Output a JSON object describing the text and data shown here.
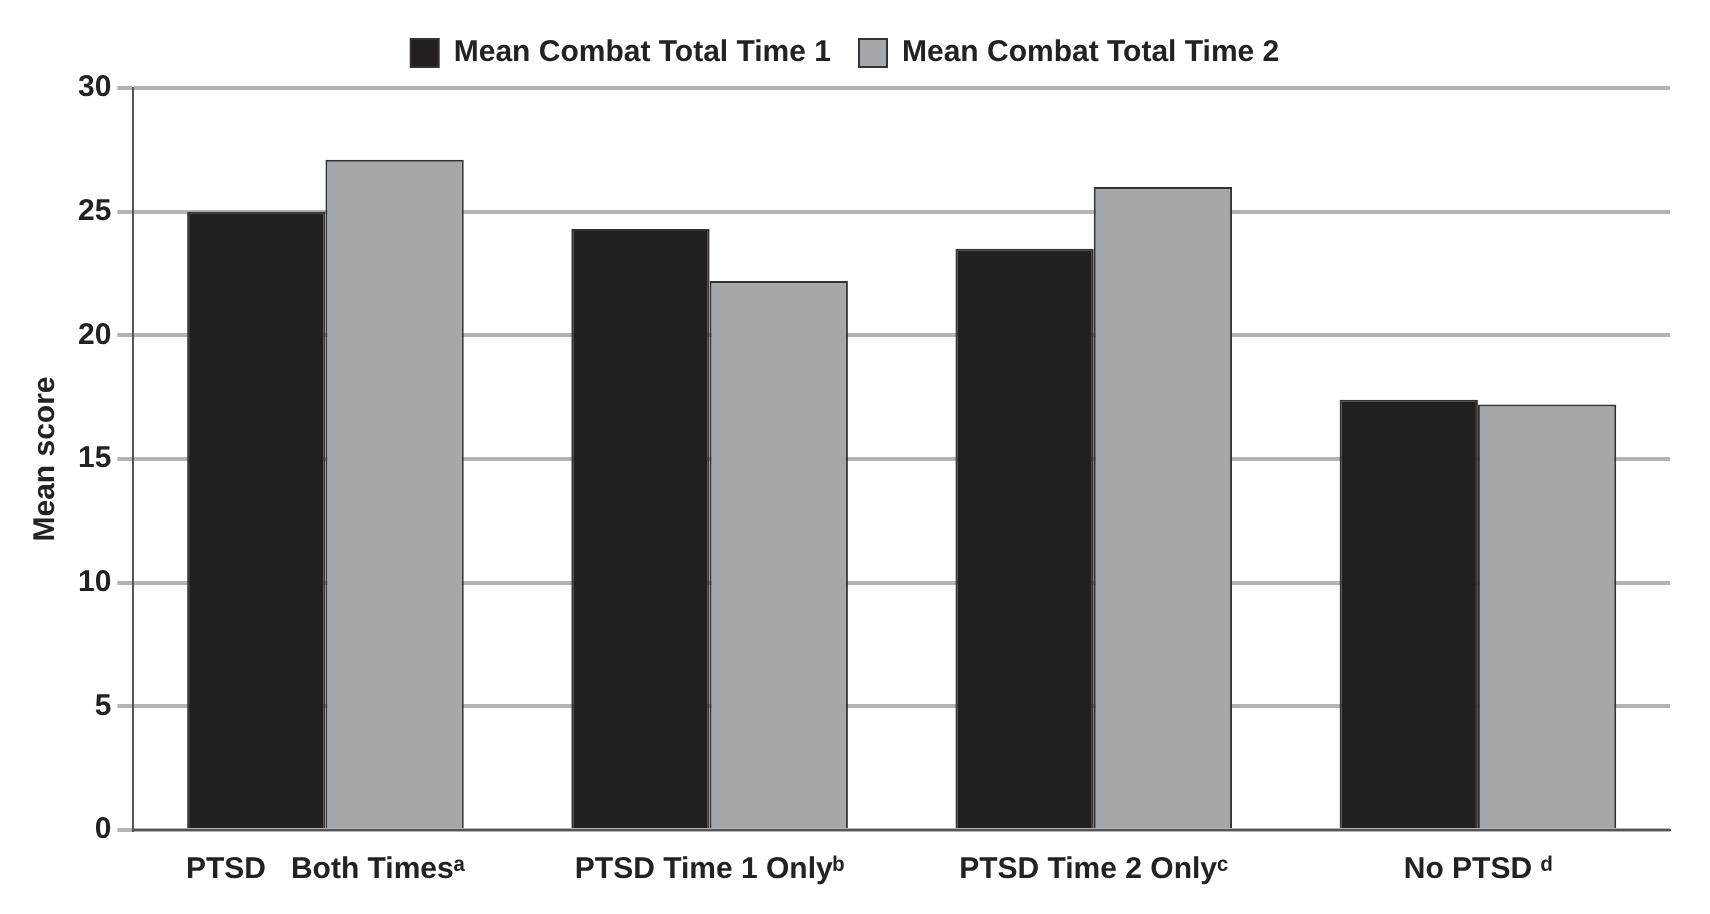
{
  "chart_data": {
    "type": "bar",
    "ylabel": "Mean score",
    "categories": [
      "PTSD   Both Timesᵃ",
      "PTSD Time 1 Onlyᵇ",
      "PTSD Time 2 Onlyᶜ",
      "No PTSD ᵈ"
    ],
    "series": [
      {
        "name": "Mean Combat Total Time 1",
        "color": "#231f1e",
        "values": [
          25.0,
          24.3,
          23.5,
          17.4
        ]
      },
      {
        "name": "Mean Combat Total Time 2",
        "color": "#a5a8ab",
        "values": [
          27.1,
          22.2,
          26.0,
          17.2
        ]
      }
    ],
    "ylim": [
      0,
      30
    ],
    "yticks": [
      0,
      5,
      10,
      15,
      20,
      25,
      30
    ],
    "grid": "y",
    "legend": "top"
  }
}
